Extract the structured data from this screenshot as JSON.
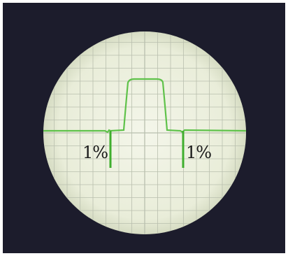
{
  "labels": [
    "1%",
    "1%"
  ]
}
